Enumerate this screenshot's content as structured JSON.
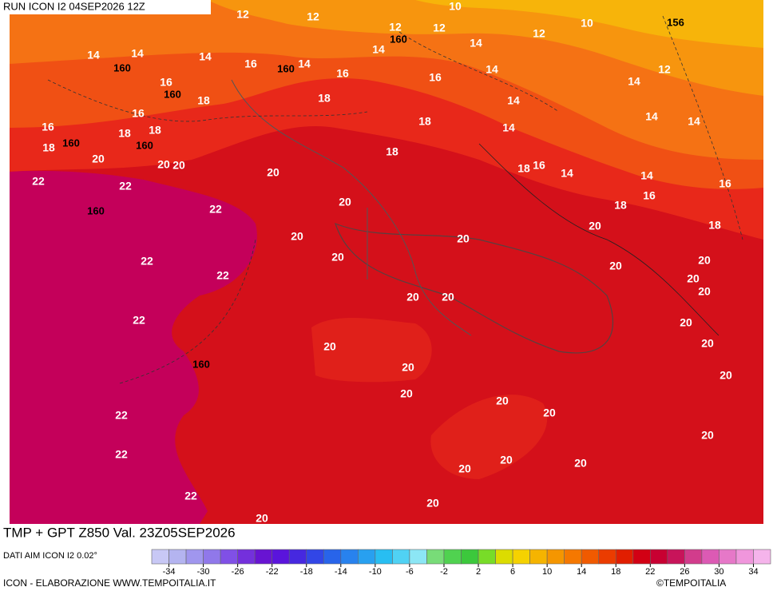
{
  "header": {
    "run": "RUN ICON I2 04SEP2026 12Z",
    "title": "TMP + GPT Z850 Val. 23Z05SEP2026",
    "source": "DATI AIM ICON I2 0.02°",
    "credit": "ICON - ELABORAZIONE WWW.TEMPOITALIA.IT",
    "copyright": "©TEMPOITALIA"
  },
  "colorbar": {
    "range": [
      -36,
      36
    ],
    "colors": [
      "#c8c8f5",
      "#b4b4f0",
      "#a096ee",
      "#9078ea",
      "#8050e6",
      "#7430dc",
      "#6814d2",
      "#5a14dc",
      "#4628e0",
      "#3246e6",
      "#2864ea",
      "#2882ee",
      "#28a0f0",
      "#28bef2",
      "#50d2f4",
      "#8ce6f5",
      "#78dc78",
      "#50d250",
      "#3cc83c",
      "#78dc28",
      "#dcdc00",
      "#f5d200",
      "#f5b400",
      "#f59600",
      "#f57800",
      "#f05a00",
      "#eb3c00",
      "#e11e00",
      "#d20014",
      "#c80032",
      "#c8145a",
      "#d23c8c",
      "#dc5ab4",
      "#e678c8",
      "#f096dc",
      "#f5b4eb"
    ],
    "ticks": [
      -34,
      -30,
      -26,
      -22,
      -18,
      -14,
      -10,
      -6,
      -2,
      2,
      6,
      10,
      14,
      18,
      22,
      26,
      30,
      34
    ]
  },
  "temperature_labels": [
    12,
    12,
    10,
    12,
    12,
    10,
    14,
    14,
    14,
    16,
    14,
    14,
    14,
    12,
    12,
    16,
    18,
    18,
    16,
    16,
    14,
    14,
    14,
    16,
    16,
    18,
    18,
    18,
    14,
    14,
    14,
    18,
    20,
    20,
    20,
    18,
    18,
    16,
    14,
    14,
    16,
    22,
    22,
    20,
    20,
    22,
    18,
    16,
    20,
    18,
    20,
    20,
    20,
    22,
    22,
    20,
    20,
    20,
    20,
    20,
    20,
    22,
    20,
    20,
    20,
    20,
    20,
    20,
    20,
    20,
    22,
    20,
    22,
    20,
    20,
    20,
    22,
    20,
    20
  ],
  "height_labels": [
    160,
    156,
    160,
    160,
    160,
    160,
    160,
    160,
    160
  ]
}
